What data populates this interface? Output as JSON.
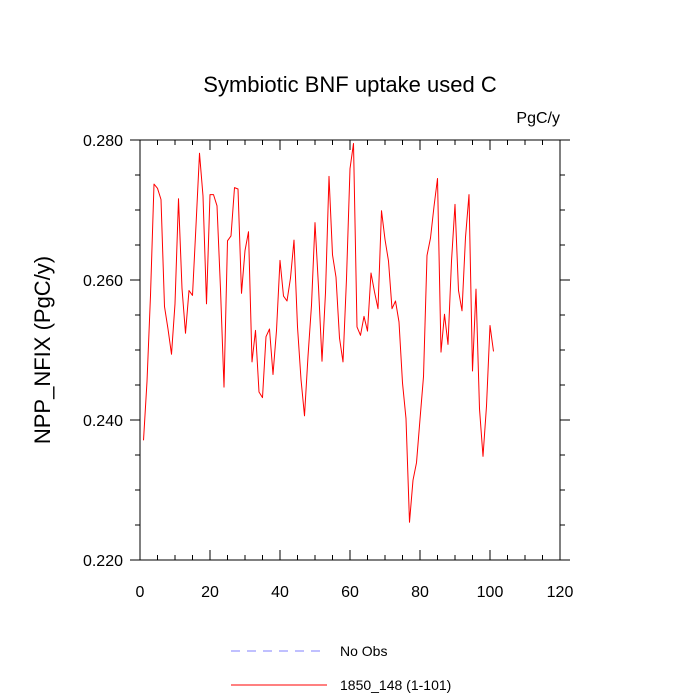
{
  "chart_data": {
    "type": "line",
    "title": "Symbiotic BNF uptake used C",
    "units": "PgC/y",
    "xlabel": "",
    "ylabel": "NPP_NFIX  (PgC/y)",
    "xlim": [
      0,
      120
    ],
    "ylim": [
      0.22,
      0.28
    ],
    "xticks": [
      0,
      20,
      40,
      60,
      80,
      100,
      120
    ],
    "yticks": [
      0.22,
      0.24,
      0.26,
      0.28
    ],
    "xtick_labels": [
      "0",
      "20",
      "40",
      "60",
      "80",
      "100",
      "120"
    ],
    "ytick_labels": [
      "0.220",
      "0.240",
      "0.260",
      "0.280"
    ],
    "x_minor_step": 5,
    "y_minor_step": 0.005,
    "grid": false,
    "series": [
      {
        "name": "1850_148 (1-101)",
        "color": "#ff0000",
        "x": [
          1,
          2,
          3,
          4,
          5,
          6,
          7,
          8,
          9,
          10,
          11,
          12,
          13,
          14,
          15,
          16,
          17,
          18,
          19,
          20,
          21,
          22,
          23,
          24,
          25,
          26,
          27,
          28,
          29,
          30,
          31,
          32,
          33,
          34,
          35,
          36,
          37,
          38,
          39,
          40,
          41,
          42,
          43,
          44,
          45,
          46,
          47,
          48,
          49,
          50,
          51,
          52,
          53,
          54,
          55,
          56,
          57,
          58,
          59,
          60,
          61,
          62,
          63,
          64,
          65,
          66,
          67,
          68,
          69,
          70,
          71,
          72,
          73,
          74,
          75,
          76,
          77,
          78,
          79,
          80,
          81,
          82,
          83,
          84,
          85,
          86,
          87,
          88,
          89,
          90,
          91,
          92,
          93,
          94,
          95,
          96,
          97,
          98,
          99,
          100,
          101
        ],
        "values": [
          0.2371,
          0.2455,
          0.2578,
          0.2737,
          0.2731,
          0.2715,
          0.2562,
          0.253,
          0.2494,
          0.2566,
          0.2716,
          0.2588,
          0.2524,
          0.2585,
          0.2578,
          0.2678,
          0.2781,
          0.272,
          0.2566,
          0.2722,
          0.2722,
          0.2706,
          0.2587,
          0.2447,
          0.2656,
          0.2663,
          0.2732,
          0.273,
          0.2581,
          0.2642,
          0.2669,
          0.2483,
          0.2528,
          0.244,
          0.2432,
          0.2519,
          0.253,
          0.2465,
          0.2528,
          0.2628,
          0.2577,
          0.257,
          0.2603,
          0.2657,
          0.2533,
          0.2458,
          0.2406,
          0.2491,
          0.2564,
          0.2682,
          0.259,
          0.2484,
          0.2582,
          0.2748,
          0.2636,
          0.2604,
          0.2517,
          0.2483,
          0.2602,
          0.2759,
          0.2795,
          0.2533,
          0.2521,
          0.2548,
          0.2527,
          0.261,
          0.2583,
          0.2559,
          0.2699,
          0.2658,
          0.2627,
          0.2559,
          0.257,
          0.254,
          0.2453,
          0.2402,
          0.2254,
          0.2314,
          0.2339,
          0.2401,
          0.2462,
          0.2635,
          0.266,
          0.2705,
          0.2745,
          0.2497,
          0.2551,
          0.2508,
          0.2627,
          0.2708,
          0.2585,
          0.2556,
          0.2661,
          0.2722,
          0.247,
          0.2587,
          0.2416,
          0.2348,
          0.242,
          0.2535,
          0.2498
        ]
      }
    ],
    "legend": {
      "position": "bottom-center",
      "entries": [
        {
          "label": "No Obs",
          "color": "#8080ff",
          "style": "dashed"
        },
        {
          "label": "1850_148 (1-101)",
          "color": "#ff0000",
          "style": "solid"
        }
      ]
    }
  }
}
